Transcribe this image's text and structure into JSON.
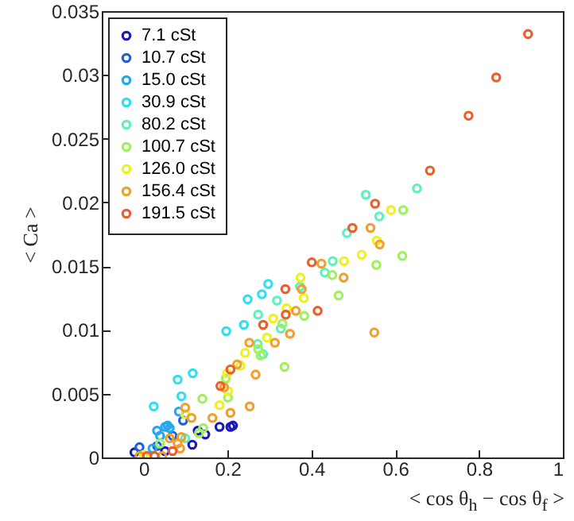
{
  "chart_data": {
    "type": "scatter",
    "xlabel": "< cos θ$_{h}$ − cos θ$_{f}$ >",
    "ylabel": "< Ca >",
    "xlim": [
      -0.1,
      1
    ],
    "ylim": [
      0,
      0.035
    ],
    "xticks": [
      0,
      0.2,
      0.4,
      0.6,
      0.8,
      1
    ],
    "yticks": [
      0,
      0.005,
      0.01,
      0.015,
      0.02,
      0.025,
      0.03,
      0.035
    ],
    "grid": false,
    "legend": "top left",
    "marker": "circle",
    "series": [
      {
        "name": "7.1 cSt",
        "color": "#1a1ab8",
        "x": [
          0.181,
          0.207,
          0.213,
          0.129,
          0.147,
          0.116,
          -0.022,
          0.051
        ],
        "values": [
          0.0024,
          0.0024,
          0.0025,
          0.0021,
          0.0018,
          0.001,
          0.0004,
          0.0005
        ]
      },
      {
        "name": "10.7 cSt",
        "color": "#2060d8",
        "x": [
          0.094,
          0.069,
          -0.01,
          0.032
        ],
        "values": [
          0.0029,
          0.0017,
          0.0008,
          0.0009
        ]
      },
      {
        "name": "15.0 cSt",
        "color": "#22a8f0",
        "x": [
          0.084,
          0.051,
          0.057,
          0.062,
          0.032,
          0.039,
          0.021
        ],
        "values": [
          0.0036,
          0.0024,
          0.0025,
          0.0023,
          0.0021,
          0.0017,
          0.0007
        ]
      },
      {
        "name": "30.9 cSt",
        "color": "#30e0f0",
        "x": [
          0.297,
          0.282,
          0.248,
          0.239,
          0.197,
          0.024,
          0.081,
          0.09,
          0.117
        ],
        "values": [
          0.0136,
          0.0128,
          0.0124,
          0.0104,
          0.0099,
          0.004,
          0.0061,
          0.0048,
          0.0066
        ]
      },
      {
        "name": "80.2 cSt",
        "color": "#60f0c0",
        "x": [
          0.53,
          0.652,
          0.562,
          0.485,
          0.451,
          0.432,
          0.373,
          0.318,
          0.273,
          0.327,
          0.285,
          0.272,
          0.099
        ],
        "values": [
          0.0206,
          0.0211,
          0.0189,
          0.0176,
          0.0154,
          0.0145,
          0.0134,
          0.0123,
          0.0112,
          0.0101,
          0.0081,
          0.0089,
          0.0015
        ]
      },
      {
        "name": "100.7 cSt",
        "color": "#a0f060",
        "x": [
          0.619,
          0.617,
          0.555,
          0.45,
          0.465,
          0.383,
          0.331,
          0.273,
          0.336,
          0.279,
          0.196,
          0.201,
          0.14,
          0.132,
          0.142,
          0.039
        ],
        "values": [
          0.0194,
          0.0158,
          0.0151,
          0.0143,
          0.0127,
          0.0111,
          0.0105,
          0.0085,
          0.0071,
          0.008,
          0.0062,
          0.0047,
          0.0046,
          0.0019,
          0.0023,
          0.0011
        ]
      },
      {
        "name": "126.0 cSt",
        "color": "#f0f020",
        "x": [
          0.59,
          0.556,
          0.52,
          0.478,
          0.374,
          0.382,
          0.341,
          0.309,
          0.294,
          0.242,
          0.231,
          0.199,
          0.201,
          0.181,
          0.099,
          0.0
        ],
        "values": [
          0.0194,
          0.017,
          0.0159,
          0.0154,
          0.0141,
          0.0125,
          0.0117,
          0.0109,
          0.0094,
          0.0082,
          0.0072,
          0.0066,
          0.0052,
          0.0041,
          0.0034,
          0.0002
        ]
      },
      {
        "name": "156.4 cSt",
        "color": "#f0a030",
        "x": [
          0.541,
          0.563,
          0.424,
          0.477,
          0.377,
          0.363,
          0.349,
          0.313,
          0.55,
          0.267,
          0.252,
          0.223,
          0.192,
          0.253,
          0.207,
          0.164,
          0.099,
          0.114,
          0.09,
          0.062,
          0.081,
          0.087,
          -0.01,
          0.044
        ],
        "values": [
          0.018,
          0.0167,
          0.0152,
          0.0141,
          0.0132,
          0.0115,
          0.0097,
          0.009,
          0.0098,
          0.0065,
          0.009,
          0.0073,
          0.0055,
          0.004,
          0.0035,
          0.0031,
          0.0039,
          0.0031,
          0.0016,
          0.0015,
          0.0011,
          0.0007,
          0.0001,
          0.0001
        ]
      },
      {
        "name": "191.5 cSt",
        "color": "#e86030",
        "x": [
          0.917,
          0.841,
          0.775,
          0.683,
          0.552,
          0.498,
          0.401,
          0.338,
          0.415,
          0.339,
          0.285,
          0.207,
          0.183,
          0.069,
          0.008,
          0.026
        ],
        "values": [
          0.0332,
          0.0298,
          0.0268,
          0.0225,
          0.0199,
          0.018,
          0.0153,
          0.0132,
          0.0115,
          0.0112,
          0.0104,
          0.0069,
          0.0056,
          0.0005,
          0.0001,
          0.0001
        ]
      }
    ]
  }
}
